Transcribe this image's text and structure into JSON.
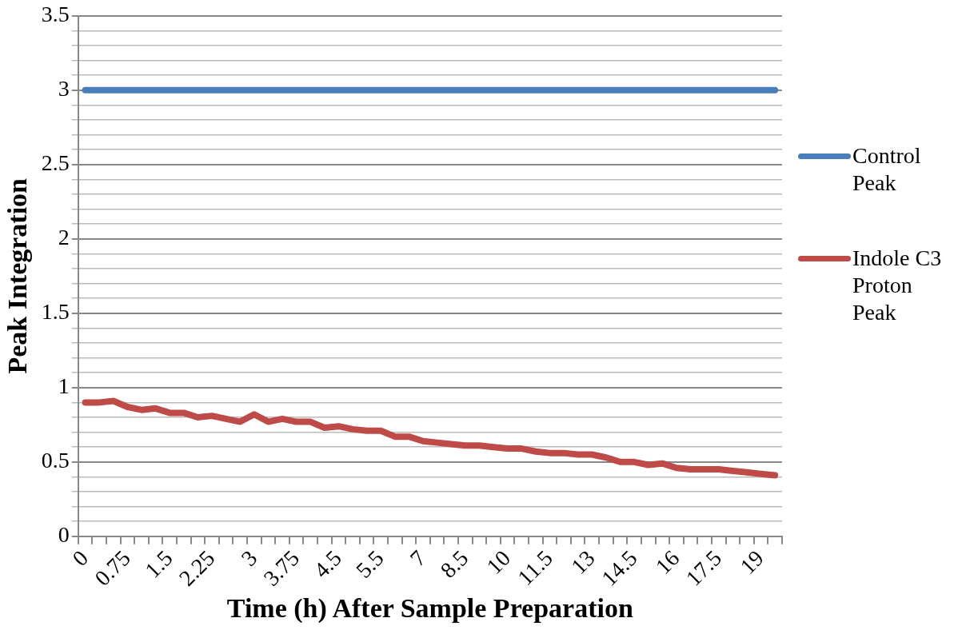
{
  "chart_data": {
    "type": "line",
    "xlabel": "Time (h) After Sample Preparation",
    "ylabel": "Peak Integration",
    "categories": [
      "0",
      null,
      null,
      "0.75",
      null,
      null,
      "1.5",
      null,
      null,
      "2.25",
      null,
      null,
      "3",
      null,
      null,
      "3.75",
      null,
      null,
      "4.5",
      null,
      null,
      "5.5",
      null,
      null,
      "7",
      null,
      null,
      "8.5",
      null,
      null,
      "10",
      null,
      null,
      "11.5",
      null,
      null,
      "13",
      null,
      null,
      "14.5",
      null,
      null,
      "16",
      null,
      null,
      "17.5",
      null,
      null,
      "19",
      null
    ],
    "ylim": [
      0,
      3.5
    ],
    "yticks": [
      0,
      {
        "value": 0.1,
        "label": null
      },
      {
        "value": 0.2,
        "label": null
      },
      {
        "value": 0.3,
        "label": null
      },
      {
        "value": 0.4,
        "label": null
      },
      0.5,
      {
        "value": 0.6,
        "label": null
      },
      {
        "value": 0.7,
        "label": null
      },
      {
        "value": 0.8,
        "label": null
      },
      {
        "value": 0.9,
        "label": null
      },
      1,
      {
        "value": 1.1,
        "label": null
      },
      {
        "value": 1.2,
        "label": null
      },
      {
        "value": 1.3,
        "label": null
      },
      {
        "value": 1.4,
        "label": null
      },
      1.5,
      {
        "value": 1.6,
        "label": null
      },
      {
        "value": 1.7,
        "label": null
      },
      {
        "value": 1.8,
        "label": null
      },
      {
        "value": 1.9,
        "label": null
      },
      2,
      {
        "value": 2.1,
        "label": null
      },
      {
        "value": 2.2,
        "label": null
      },
      {
        "value": 2.3,
        "label": null
      },
      {
        "value": 2.4,
        "label": null
      },
      2.5,
      {
        "value": 2.6,
        "label": null
      },
      {
        "value": 2.7,
        "label": null
      },
      {
        "value": 2.8,
        "label": null
      },
      {
        "value": 2.9,
        "label": null
      },
      3,
      {
        "value": 3.1,
        "label": null
      },
      {
        "value": 3.2,
        "label": null
      },
      {
        "value": 3.3,
        "label": null
      },
      {
        "value": 3.4,
        "label": null
      },
      3.5
    ],
    "grid": "y",
    "legend": "right",
    "marker": "none",
    "line_style": "solid",
    "series": [
      {
        "name": "Control Peak",
        "color": "#4a7ebb",
        "values": [
          3,
          3,
          3,
          3,
          3,
          3,
          3,
          3,
          3,
          3,
          3,
          3,
          3,
          3,
          3,
          3,
          3,
          3,
          3,
          3,
          3,
          3,
          3,
          3,
          3,
          3,
          3,
          3,
          3,
          3,
          3,
          3,
          3,
          3,
          3,
          3,
          3,
          3,
          3,
          3,
          3,
          3,
          3,
          3,
          3,
          3,
          3,
          3,
          3,
          3
        ]
      },
      {
        "name": "Indole C3 Proton Peak",
        "color": "#be4b48",
        "values": [
          0.9,
          0.9,
          0.91,
          0.87,
          0.85,
          0.86,
          0.83,
          0.83,
          0.8,
          0.81,
          0.79,
          0.77,
          0.82,
          0.77,
          0.79,
          0.77,
          0.77,
          0.73,
          0.74,
          0.72,
          0.71,
          0.71,
          0.67,
          0.67,
          0.64,
          0.63,
          0.62,
          0.61,
          0.61,
          0.6,
          0.59,
          0.59,
          0.57,
          0.56,
          0.56,
          0.55,
          0.55,
          0.53,
          0.5,
          0.5,
          0.48,
          0.49,
          0.46,
          0.45,
          0.45,
          0.45,
          0.44,
          0.43,
          0.42,
          0.41
        ]
      }
    ]
  }
}
